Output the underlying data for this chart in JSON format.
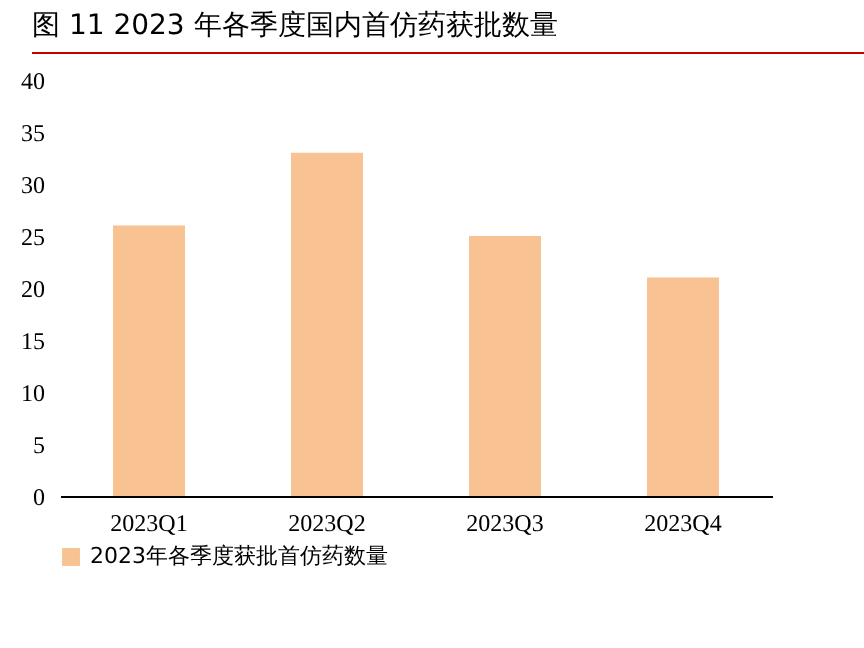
{
  "chart_data": {
    "type": "bar",
    "title": "图 11 2023 年各季度国内首仿药获批数量",
    "categories": [
      "2023Q1",
      "2023Q2",
      "2023Q3",
      "2023Q4"
    ],
    "series": [
      {
        "name": "2023年各季度获批首仿药数量",
        "color": "#f8c292",
        "values": [
          26,
          33,
          25,
          21
        ]
      }
    ],
    "ylim": [
      0,
      40
    ],
    "yticks": [
      0,
      5,
      10,
      15,
      20,
      25,
      30,
      35,
      40
    ],
    "grid": false,
    "legend": "bottom"
  }
}
